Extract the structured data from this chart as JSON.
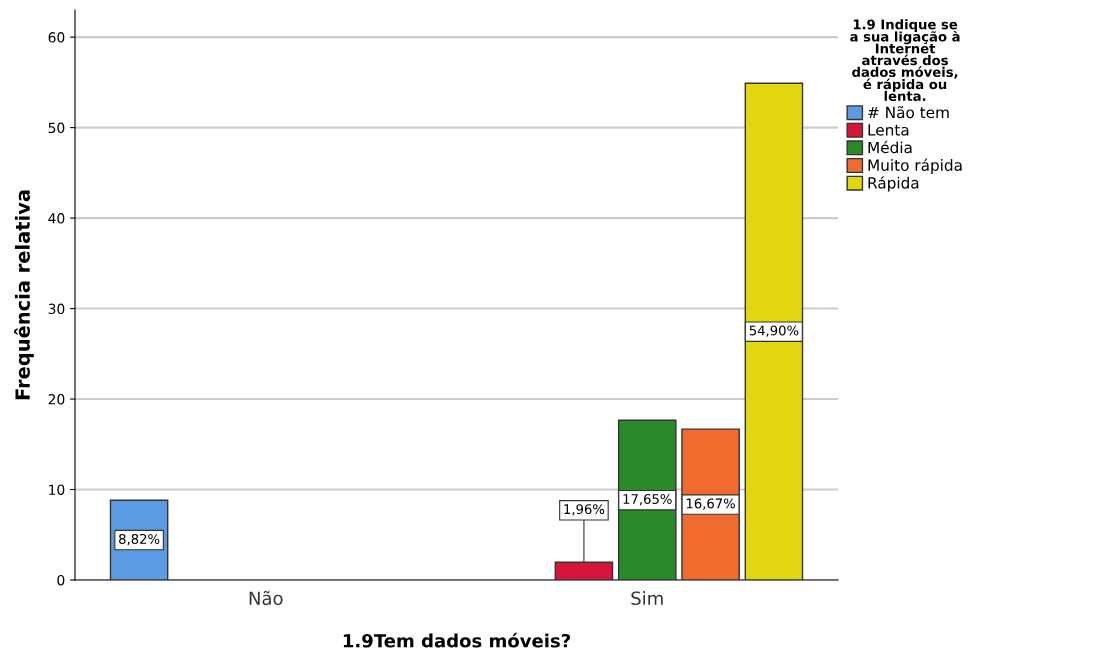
{
  "chart_data": {
    "type": "bar",
    "xlabel": "1.9Tem dados móveis?",
    "ylabel": "Frequência relativa",
    "legend_title": "1.9 Indique se\na sua ligação à\nInternet\natravés dos\ndados móveis,\né rápida ou\nlenta.",
    "categories": [
      "Não",
      "Sim"
    ],
    "series": [
      {
        "name": "# Não tem",
        "color": "#5b9be6",
        "values": [
          8.82,
          null
        ],
        "value_labels": [
          "8,82%",
          null
        ]
      },
      {
        "name": "Lenta",
        "color": "#d7153a",
        "values": [
          null,
          1.96
        ],
        "value_labels": [
          null,
          "1,96%"
        ]
      },
      {
        "name": "Média",
        "color": "#2a8a2a",
        "values": [
          null,
          17.65
        ],
        "value_labels": [
          null,
          "17,65%"
        ]
      },
      {
        "name": "Muito rápida",
        "color": "#f26b2e",
        "values": [
          null,
          16.67
        ],
        "value_labels": [
          null,
          "16,67%"
        ]
      },
      {
        "name": "Rápida",
        "color": "#e2d611",
        "values": [
          null,
          54.9
        ],
        "value_labels": [
          null,
          "54,90%"
        ]
      }
    ],
    "ylim": [
      0,
      63
    ],
    "yticks": [
      0,
      10,
      20,
      30,
      40,
      50,
      60
    ],
    "grid": "y",
    "legend": "right"
  }
}
